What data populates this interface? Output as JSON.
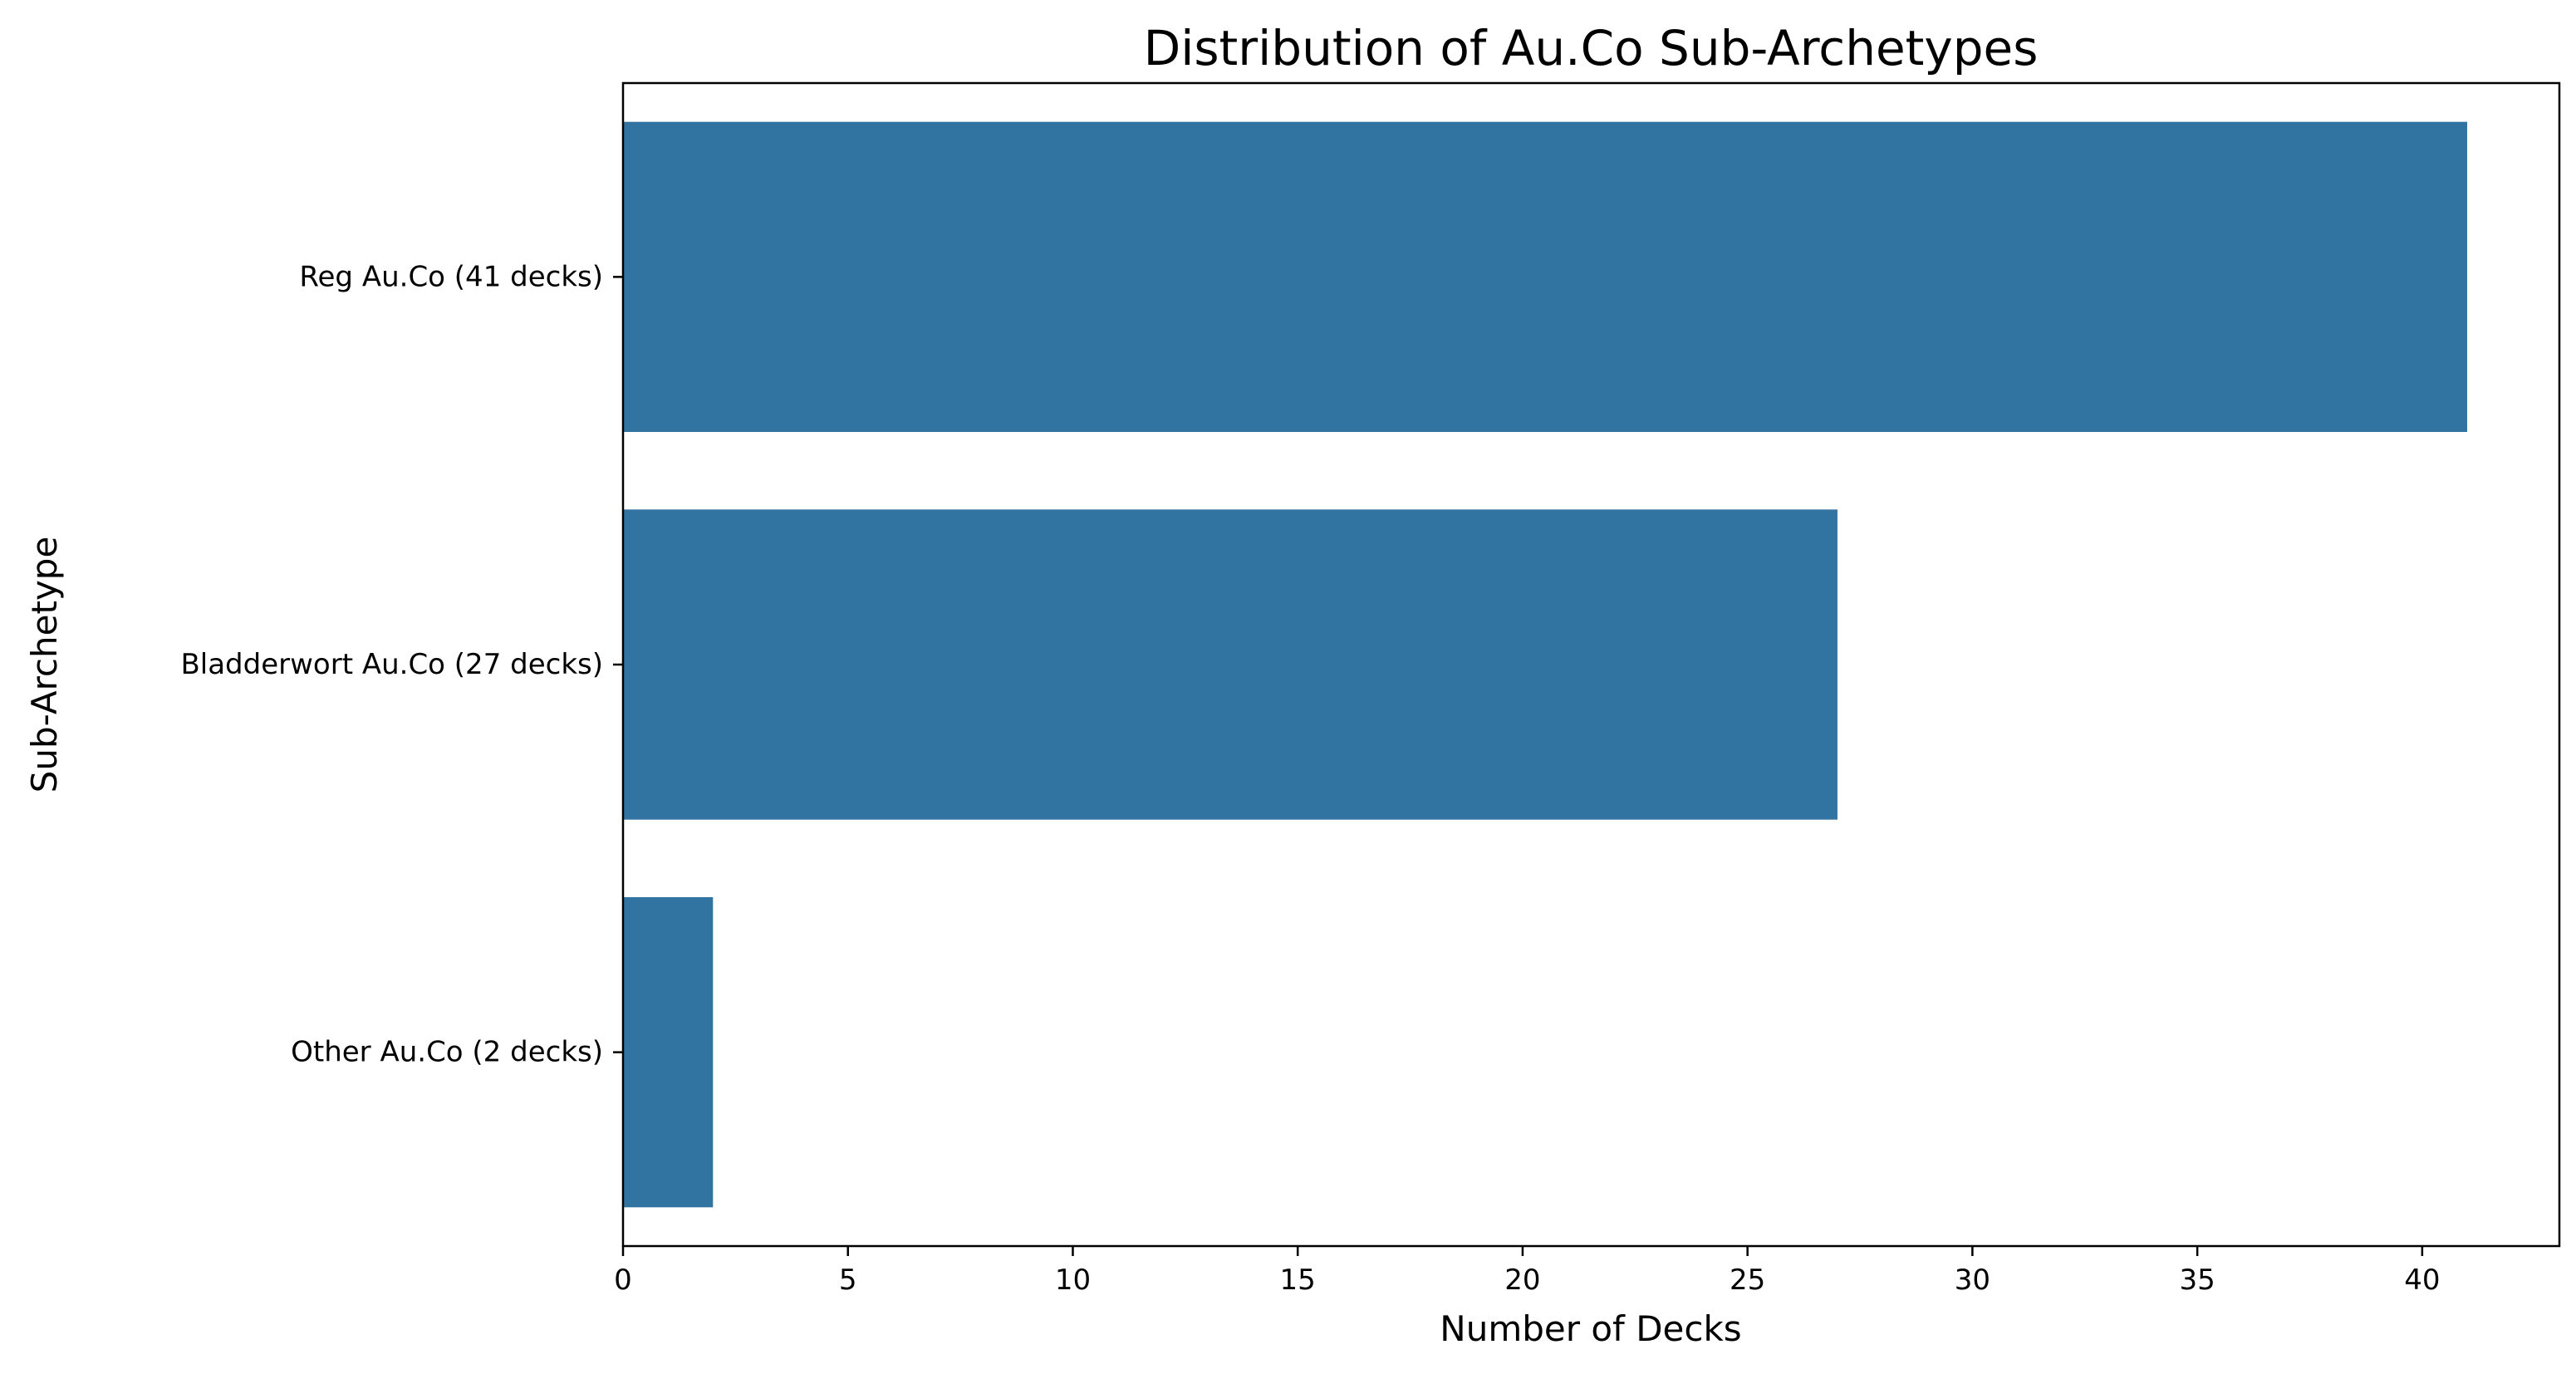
{
  "chart_data": {
    "type": "bar",
    "orientation": "horizontal",
    "title": "Distribution of Au.Co Sub-Archetypes",
    "xlabel": "Number of Decks",
    "ylabel": "Sub-Archetype",
    "categories": [
      "Reg Au.Co (41 decks)",
      "Bladderwort Au.Co (27 decks)",
      "Other Au.Co (2 decks)"
    ],
    "values": [
      41,
      27,
      2
    ],
    "xlim": [
      0,
      43.05
    ],
    "xticks": [
      0,
      5,
      10,
      15,
      20,
      25,
      30,
      35,
      40
    ],
    "grid": false,
    "legend": "none",
    "bar_color": "#3274a1"
  }
}
